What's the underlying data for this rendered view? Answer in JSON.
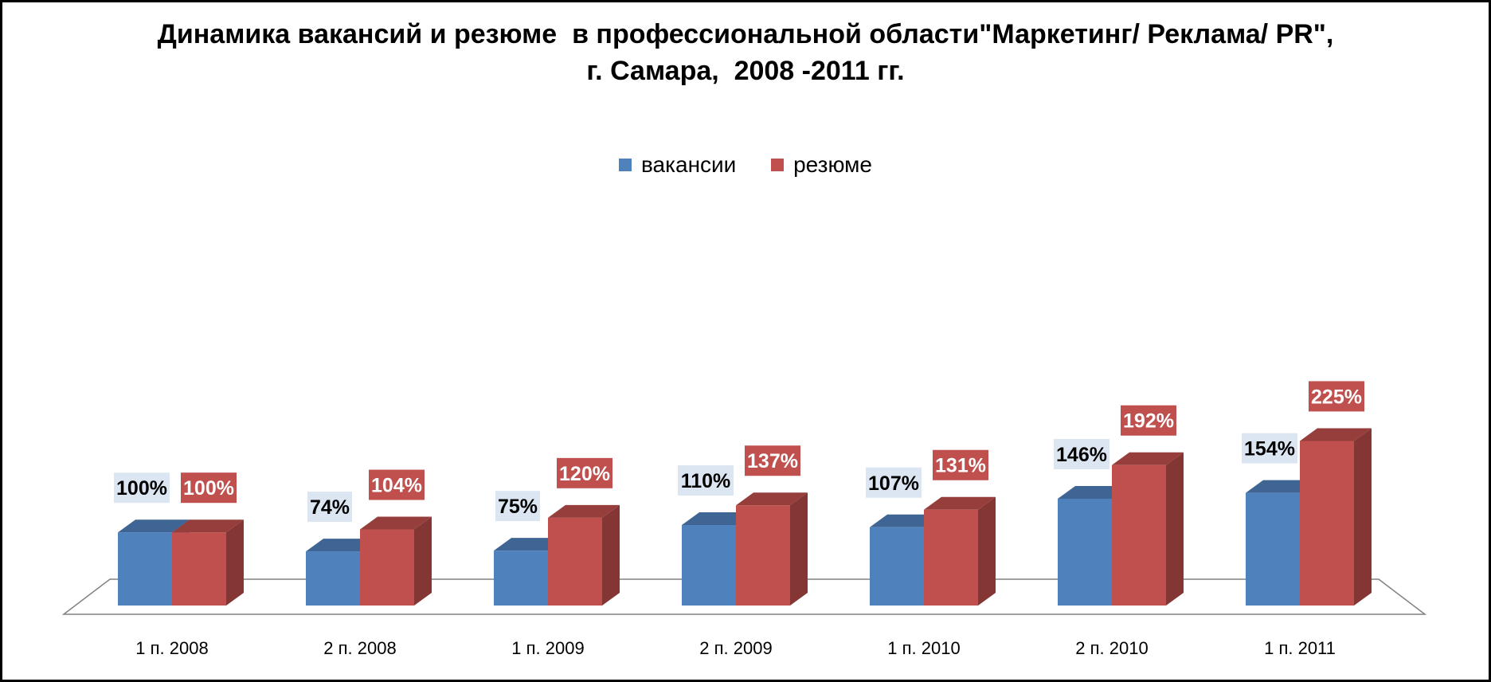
{
  "chart_data": {
    "type": "bar",
    "title_line1": "Динамика вакансий и резюме  в профессиональной области\"Маркетинг/ Реклама/ PR\",",
    "title_line2": "г. Самара,  2008 -2011 гг.",
    "categories": [
      "1 п. 2008",
      "2 п. 2008",
      "1 п. 2009",
      "2 п. 2009",
      "1 п. 2010",
      "2 п. 2010",
      "1 п. 2011"
    ],
    "series": [
      {
        "name": "вакансии",
        "values": [
          100,
          74,
          75,
          110,
          107,
          146,
          154
        ],
        "labels": [
          "100%",
          "74%",
          "75%",
          "110%",
          "107%",
          "146%",
          "154%"
        ],
        "color": "#4F81BD",
        "label_bg": "#DCE6F2",
        "label_color": "#000000"
      },
      {
        "name": "резюме",
        "values": [
          100,
          104,
          120,
          137,
          131,
          192,
          225
        ],
        "labels": [
          "100%",
          "104%",
          "120%",
          "137%",
          "131%",
          "192%",
          "225%"
        ],
        "color": "#C0504D",
        "label_bg": "#C0504D",
        "label_color": "#FFFFFF"
      }
    ],
    "ylim": [
      0,
      225
    ],
    "legend_position": "top",
    "grid": false
  }
}
